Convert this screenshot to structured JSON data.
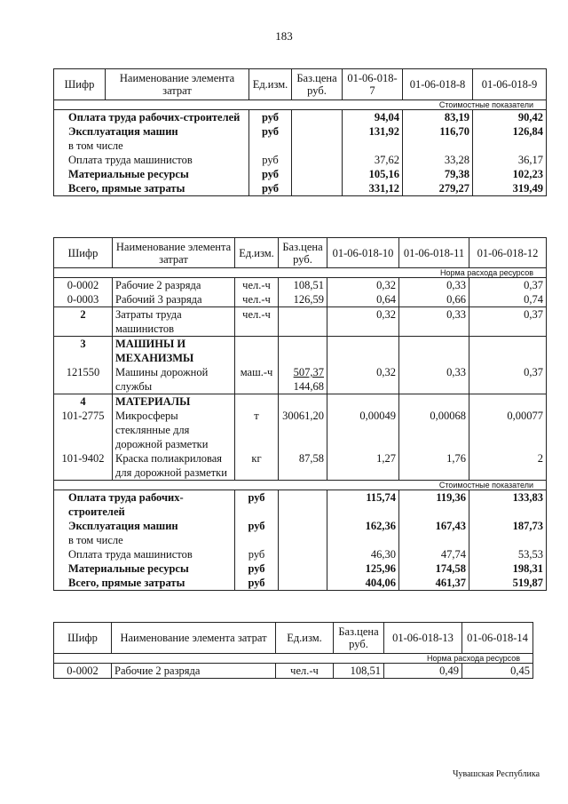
{
  "page_number": "183",
  "footer": "Чувашская Республика",
  "tables": [
    {
      "headers": [
        "Шифр",
        "Наименование элемента затрат",
        "Ед.изм.",
        "Баз.цена руб.",
        "01-06-018-7",
        "01-06-018-8",
        "01-06-018-9"
      ],
      "subheader": "Стоимостные показатели",
      "rows": [
        {
          "name": "Оплата труда рабочих-строителей",
          "unit": "руб",
          "values": [
            "94,04",
            "83,19",
            "90,42"
          ],
          "bold": true,
          "summary": true
        },
        {
          "name": "Эксплуатация машин",
          "unit": "руб",
          "values": [
            "131,92",
            "116,70",
            "126,84"
          ],
          "bold": true,
          "summary": true
        },
        {
          "name": "в том числе",
          "summary": true,
          "values": []
        },
        {
          "name": "Оплата труда машинистов",
          "unit": "руб",
          "values": [
            "37,62",
            "33,28",
            "36,17"
          ],
          "summary": true
        },
        {
          "name": "Материальные ресурсы",
          "unit": "руб",
          "values": [
            "105,16",
            "79,38",
            "102,23"
          ],
          "bold": true,
          "summary": true
        },
        {
          "name": "Всего, прямые затраты",
          "unit": "руб",
          "values": [
            "331,12",
            "279,27",
            "319,49"
          ],
          "bold": true,
          "summary": true
        }
      ]
    },
    {
      "headers": [
        "Шифр",
        "Наименование элемента затрат",
        "Ед.изм.",
        "Баз.цена руб.",
        "01-06-018-10",
        "01-06-018-11",
        "01-06-018-12"
      ],
      "subheader": "Норма расхода ресурсов",
      "rows": [
        {
          "code": "0-0002",
          "name": "Рабочие 2 разряда",
          "unit": "чел.-ч",
          "price": "108,51",
          "values": [
            "0,32",
            "0,33",
            "0,37"
          ]
        },
        {
          "code": "0-0003",
          "name": "Рабочий 3 разряда",
          "unit": "чел.-ч",
          "price": "126,59",
          "values": [
            "0,64",
            "0,66",
            "0,74"
          ]
        },
        {
          "code": "2",
          "code_bold": true,
          "name": "Затраты труда машинистов",
          "unit": "чел.-ч",
          "values": [
            "0,32",
            "0,33",
            "0,37"
          ],
          "sep": true
        },
        {
          "code": "3",
          "code_bold": true,
          "name": "МАШИНЫ И МЕХАНИЗМЫ",
          "bold": true,
          "values": [],
          "sep": true
        },
        {
          "code": "121550",
          "name": "Машины дорожной службы",
          "unit": "маш.-ч",
          "price": "507,37",
          "price2": "144,68",
          "values": [
            "0,32",
            "0,33",
            "0,37"
          ]
        },
        {
          "code": "4",
          "code_bold": true,
          "name": "МАТЕРИАЛЫ",
          "bold": true,
          "values": [],
          "sep": true
        },
        {
          "code": "101-2775",
          "name": "Микросферы стеклянные для дорожной разметки",
          "unit": "т",
          "price": "30061,20",
          "values": [
            "0,00049",
            "0,00068",
            "0,00077"
          ]
        },
        {
          "code": "101-9402",
          "name": "Краска полиакриловая для дорожной разметки",
          "unit": "кг",
          "price": "87,58",
          "values": [
            "1,27",
            "1,76",
            "2"
          ]
        }
      ],
      "subheader2": "Стоимостные показатели",
      "rows2": [
        {
          "name": "Оплата труда рабочих-строителей",
          "unit": "руб",
          "values": [
            "115,74",
            "119,36",
            "133,83"
          ],
          "bold": true,
          "summary": true
        },
        {
          "name": "Эксплуатация машин",
          "unit": "руб",
          "values": [
            "162,36",
            "167,43",
            "187,73"
          ],
          "bold": true,
          "summary": true
        },
        {
          "name": "в том числе",
          "summary": true,
          "values": []
        },
        {
          "name": "Оплата труда машинистов",
          "unit": "руб",
          "values": [
            "46,30",
            "47,74",
            "53,53"
          ],
          "summary": true
        },
        {
          "name": "Материальные ресурсы",
          "unit": "руб",
          "values": [
            "125,96",
            "174,58",
            "198,31"
          ],
          "bold": true,
          "summary": true
        },
        {
          "name": "Всего, прямые затраты",
          "unit": "руб",
          "values": [
            "404,06",
            "461,37",
            "519,87"
          ],
          "bold": true,
          "summary": true
        }
      ]
    },
    {
      "headers": [
        "Шифр",
        "Наименование элемента затрат",
        "Ед.изм.",
        "Баз.цена руб.",
        "01-06-018-13",
        "01-06-018-14"
      ],
      "subheader": "Норма расхода ресурсов",
      "rows": [
        {
          "code": "0-0002",
          "name": "Рабочие 2 разряда",
          "unit": "чел.-ч",
          "price": "108,51",
          "values": [
            "0,49",
            "0,45"
          ],
          "sep": true
        }
      ]
    }
  ]
}
